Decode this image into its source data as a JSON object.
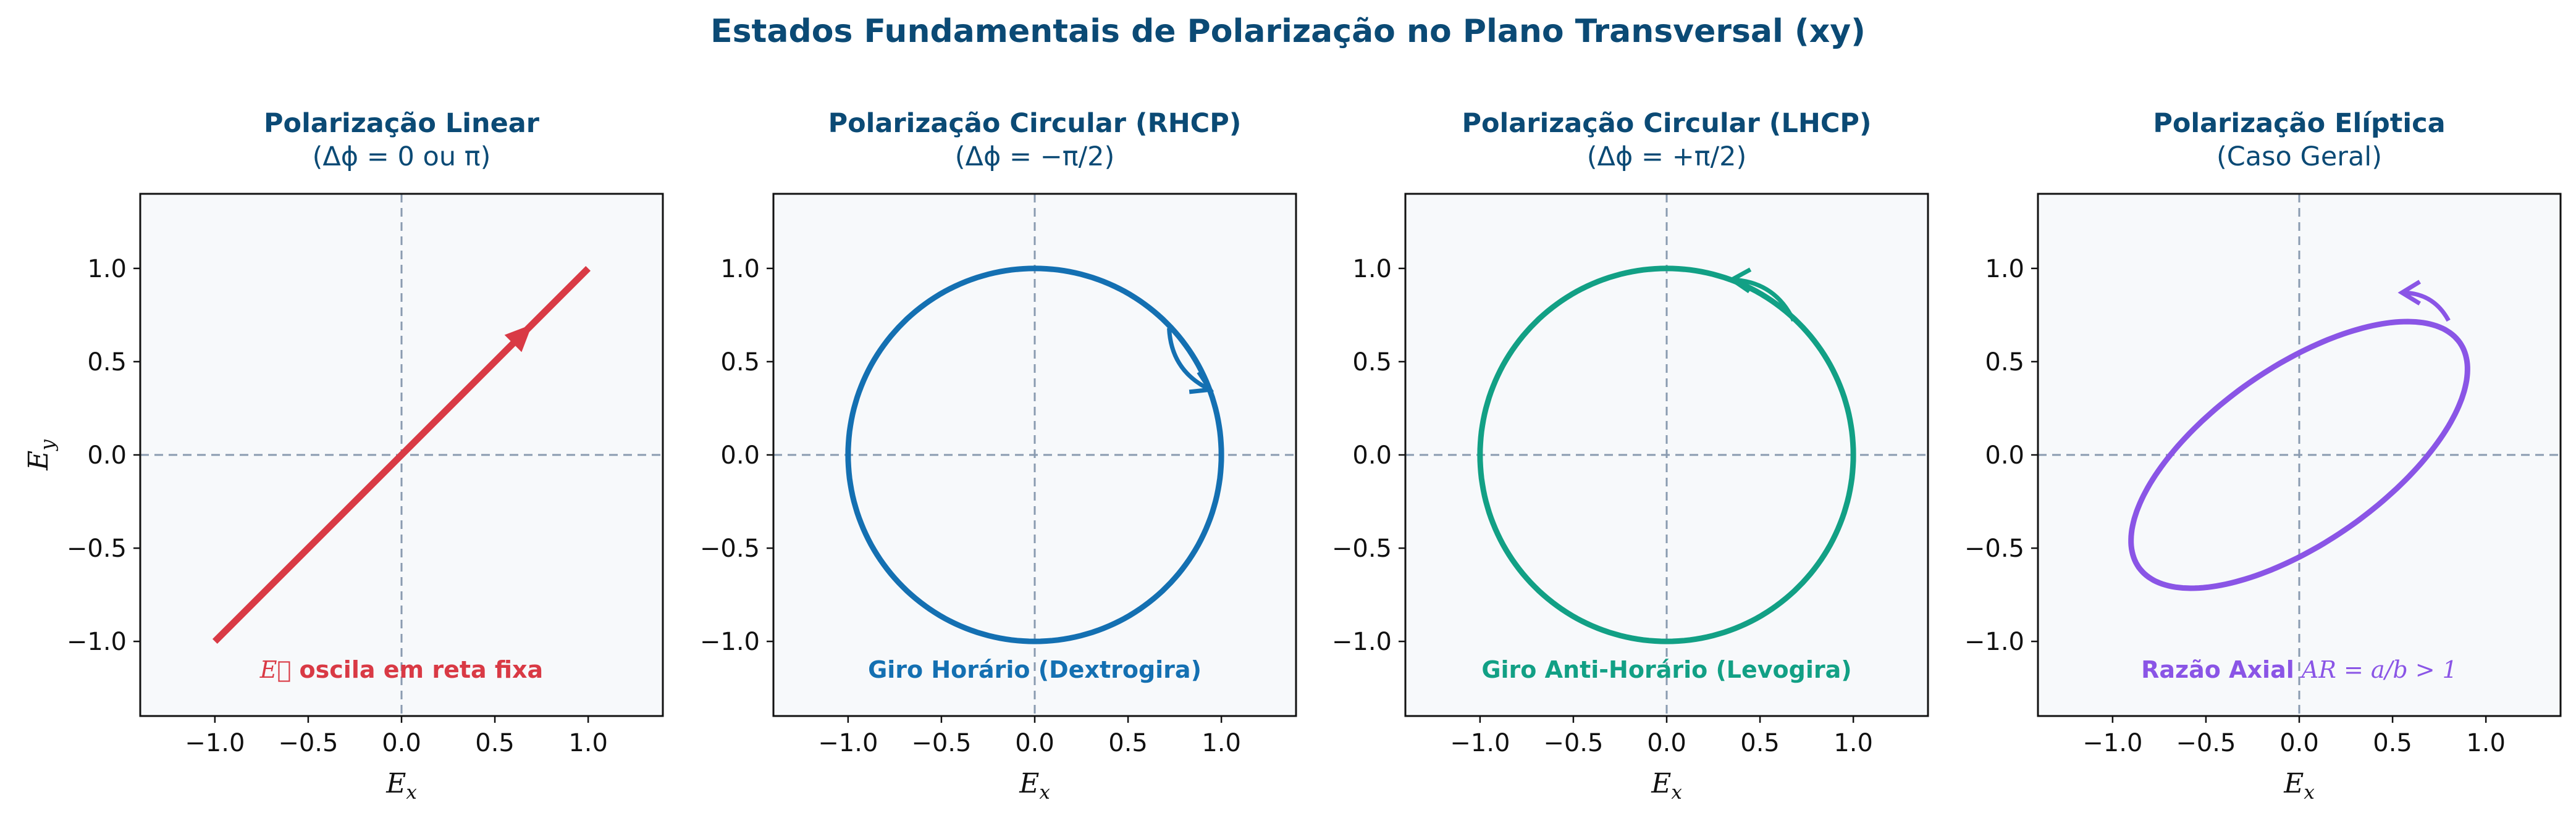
{
  "figure": {
    "title": "Estados Fundamentais de Polarização no Plano Transversal (xy)"
  },
  "chart_data": [
    {
      "type": "line",
      "title": "Polarização Linear",
      "subtitle": "(Δϕ = 0 ou π)",
      "xlabel": "E_x",
      "ylabel": "E_y",
      "xlim": [
        -1.4,
        1.4
      ],
      "ylim": [
        -1.4,
        1.4
      ],
      "xticks": [
        "−1.0",
        "−0.5",
        "0.0",
        "0.5",
        "1.0"
      ],
      "yticks": [
        "1.0",
        "0.5",
        "0.0",
        "−0.5",
        "−1.0"
      ],
      "show_yticks": true,
      "color": "#d93a45",
      "curve": {
        "kind": "linear",
        "from": [
          -1.0,
          -1.0
        ],
        "to": [
          1.0,
          1.0
        ]
      },
      "arrow": {
        "from": [
          0.5,
          0.5
        ],
        "to": [
          0.7,
          0.7
        ]
      },
      "annotation": {
        "prefix": "E⃗",
        "text": " oscila em reta fixa"
      }
    },
    {
      "type": "line",
      "title": "Polarização Circular (RHCP)",
      "subtitle": "(Δϕ = −π/2)",
      "xlabel": "E_x",
      "ylabel": "",
      "xlim": [
        -1.4,
        1.4
      ],
      "ylim": [
        -1.4,
        1.4
      ],
      "xticks": [
        "−1.0",
        "−0.5",
        "0.0",
        "0.5",
        "1.0"
      ],
      "yticks": [
        "1.0",
        "0.5",
        "0.0",
        "−0.5",
        "−1.0"
      ],
      "show_yticks": true,
      "color": "#1470b2",
      "curve": {
        "kind": "ellipse",
        "a": 1.0,
        "b": 1.0,
        "angle_deg": 0
      },
      "arrow": {
        "from": [
          0.72,
          0.68
        ],
        "to": [
          0.94,
          0.35
        ],
        "curved": true
      },
      "annotation": {
        "prefix": "",
        "text": "Giro Horário (Dextrogira)"
      }
    },
    {
      "type": "line",
      "title": "Polarização Circular (LHCP)",
      "subtitle": "(Δϕ = +π/2)",
      "xlabel": "E_x",
      "ylabel": "",
      "xlim": [
        -1.4,
        1.4
      ],
      "ylim": [
        -1.4,
        1.4
      ],
      "xticks": [
        "−1.0",
        "−0.5",
        "0.0",
        "0.5",
        "1.0"
      ],
      "yticks": [
        "1.0",
        "0.5",
        "0.0",
        "−0.5",
        "−1.0"
      ],
      "show_yticks": true,
      "color": "#12a085",
      "curve": {
        "kind": "ellipse",
        "a": 1.0,
        "b": 1.0,
        "angle_deg": 0
      },
      "arrow": {
        "from": [
          0.68,
          0.72
        ],
        "to": [
          0.35,
          0.94
        ],
        "curved": true
      },
      "annotation": {
        "prefix": "",
        "text": "Giro Anti-Horário (Levogira)"
      }
    },
    {
      "type": "line",
      "title": "Polarização Elíptica",
      "subtitle": "(Caso Geral)",
      "xlabel": "E_x",
      "ylabel": "",
      "xlim": [
        -1.4,
        1.4
      ],
      "ylim": [
        -1.4,
        1.4
      ],
      "xticks": [
        "−1.0",
        "−0.5",
        "0.0",
        "0.5",
        "1.0"
      ],
      "yticks": [
        "1.0",
        "0.5",
        "0.0",
        "−0.5",
        "−1.0"
      ],
      "show_yticks": true,
      "color": "#8a55e6",
      "curve": {
        "kind": "ellipse",
        "a": 1.05,
        "b": 0.47,
        "angle_deg": 35
      },
      "arrow": {
        "from": [
          0.8,
          0.72
        ],
        "to": [
          0.55,
          0.87
        ],
        "curved": true
      },
      "annotation": {
        "prefix": "Razão Axial",
        "text": " AR = a/b > 1"
      }
    }
  ]
}
